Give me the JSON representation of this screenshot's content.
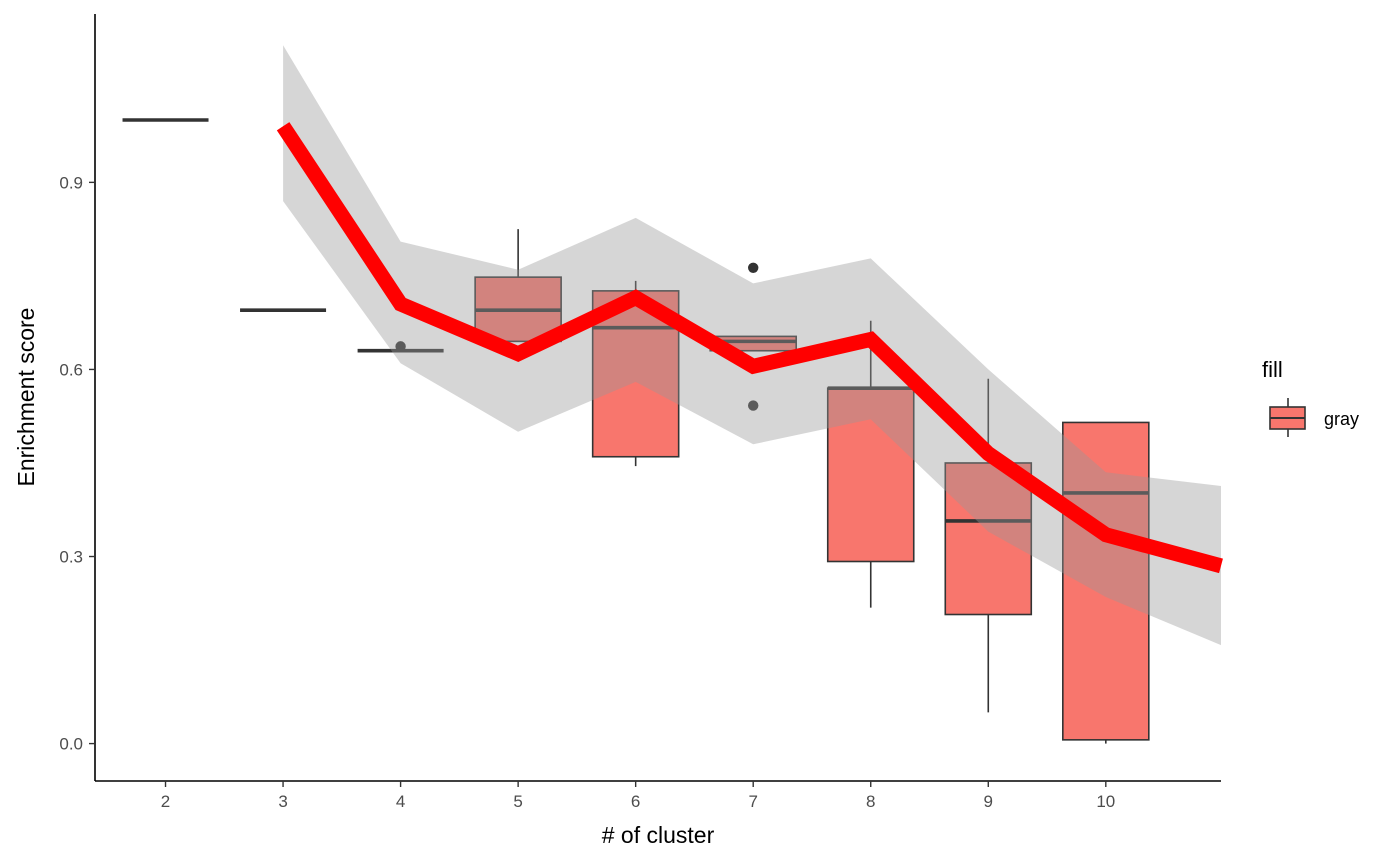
{
  "chart_data": {
    "type": "box",
    "xlabel": "# of cluster",
    "ylabel": "Enrichment score",
    "x_ticks": [
      "2",
      "3",
      "4",
      "5",
      "6",
      "7",
      "8",
      "9",
      "10"
    ],
    "y_ticks": [
      "0.0",
      "0.3",
      "0.6",
      "0.9"
    ],
    "xlim": [
      1.4,
      10.98
    ],
    "ylim": [
      -0.06,
      1.17
    ],
    "grid": false,
    "legend": {
      "title": "fill",
      "placement": "right",
      "items": [
        {
          "label": "gray",
          "color": "#F8766D"
        }
      ]
    },
    "colors": {
      "box_fill": "#F8766D",
      "trend_line": "#FF0000",
      "ribbon": "#999999"
    },
    "boxes": [
      {
        "x": 2,
        "lower": 1.0,
        "q1": 1.0,
        "median": 1.0,
        "q3": 1.0,
        "upper": 1.0,
        "outliers": []
      },
      {
        "x": 3,
        "lower": 0.695,
        "q1": 0.695,
        "median": 0.695,
        "q3": 0.695,
        "upper": 0.695,
        "outliers": []
      },
      {
        "x": 4,
        "lower": 0.63,
        "q1": 0.63,
        "median": 0.63,
        "q3": 0.63,
        "upper": 0.63,
        "outliers": [
          0.637
        ]
      },
      {
        "x": 5,
        "lower": 0.645,
        "q1": 0.645,
        "median": 0.695,
        "q3": 0.748,
        "upper": 0.825,
        "outliers": []
      },
      {
        "x": 6,
        "lower": 0.445,
        "q1": 0.46,
        "median": 0.667,
        "q3": 0.726,
        "upper": 0.742,
        "outliers": []
      },
      {
        "x": 7,
        "lower": 0.63,
        "q1": 0.63,
        "median": 0.645,
        "q3": 0.653,
        "upper": 0.653,
        "outliers": [
          0.763,
          0.542
        ]
      },
      {
        "x": 8,
        "lower": 0.218,
        "q1": 0.292,
        "median": 0.57,
        "q3": 0.57,
        "upper": 0.678,
        "outliers": []
      },
      {
        "x": 9,
        "lower": 0.05,
        "q1": 0.207,
        "median": 0.357,
        "q3": 0.45,
        "upper": 0.585,
        "outliers": []
      },
      {
        "x": 10,
        "lower": 0.0,
        "q1": 0.006,
        "median": 0.402,
        "q3": 0.515,
        "upper": 0.515,
        "outliers": []
      }
    ],
    "trend": {
      "x": [
        3,
        4,
        5,
        6,
        7,
        8,
        9,
        10,
        10.98
      ],
      "y": [
        0.99,
        0.705,
        0.625,
        0.715,
        0.605,
        0.648,
        0.465,
        0.335,
        0.285
      ],
      "upper": [
        1.12,
        0.805,
        0.76,
        0.843,
        0.738,
        0.778,
        0.6,
        0.435,
        0.413
      ],
      "lower": [
        0.87,
        0.61,
        0.5,
        0.58,
        0.48,
        0.52,
        0.34,
        0.235,
        0.158
      ]
    }
  }
}
